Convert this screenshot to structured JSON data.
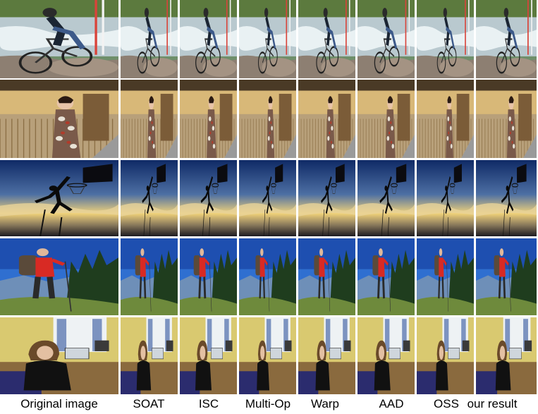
{
  "columns": [
    {
      "id": "original",
      "label": "Original image"
    },
    {
      "id": "soat",
      "label": "SOAT"
    },
    {
      "id": "isc",
      "label": "ISC"
    },
    {
      "id": "multiop",
      "label": "Multi-Op"
    },
    {
      "id": "warp",
      "label": "Warp"
    },
    {
      "id": "aad",
      "label": "AAD"
    },
    {
      "id": "oss",
      "label": "OSS"
    },
    {
      "id": "ours",
      "label": "our result"
    }
  ],
  "rows": [
    {
      "id": "bike",
      "scene": "cyclist riding over rocks beside river rapids"
    },
    {
      "id": "kimono",
      "scene": "woman in kimono in narrow alley with wooden fence"
    },
    {
      "id": "basketball",
      "scene": "silhouette dunking basketball at sunset"
    },
    {
      "id": "hiker",
      "scene": "hiker with backpack and red jacket on mountain slope"
    },
    {
      "id": "room",
      "scene": "smiling woman at desk with laptop in room"
    }
  ]
}
